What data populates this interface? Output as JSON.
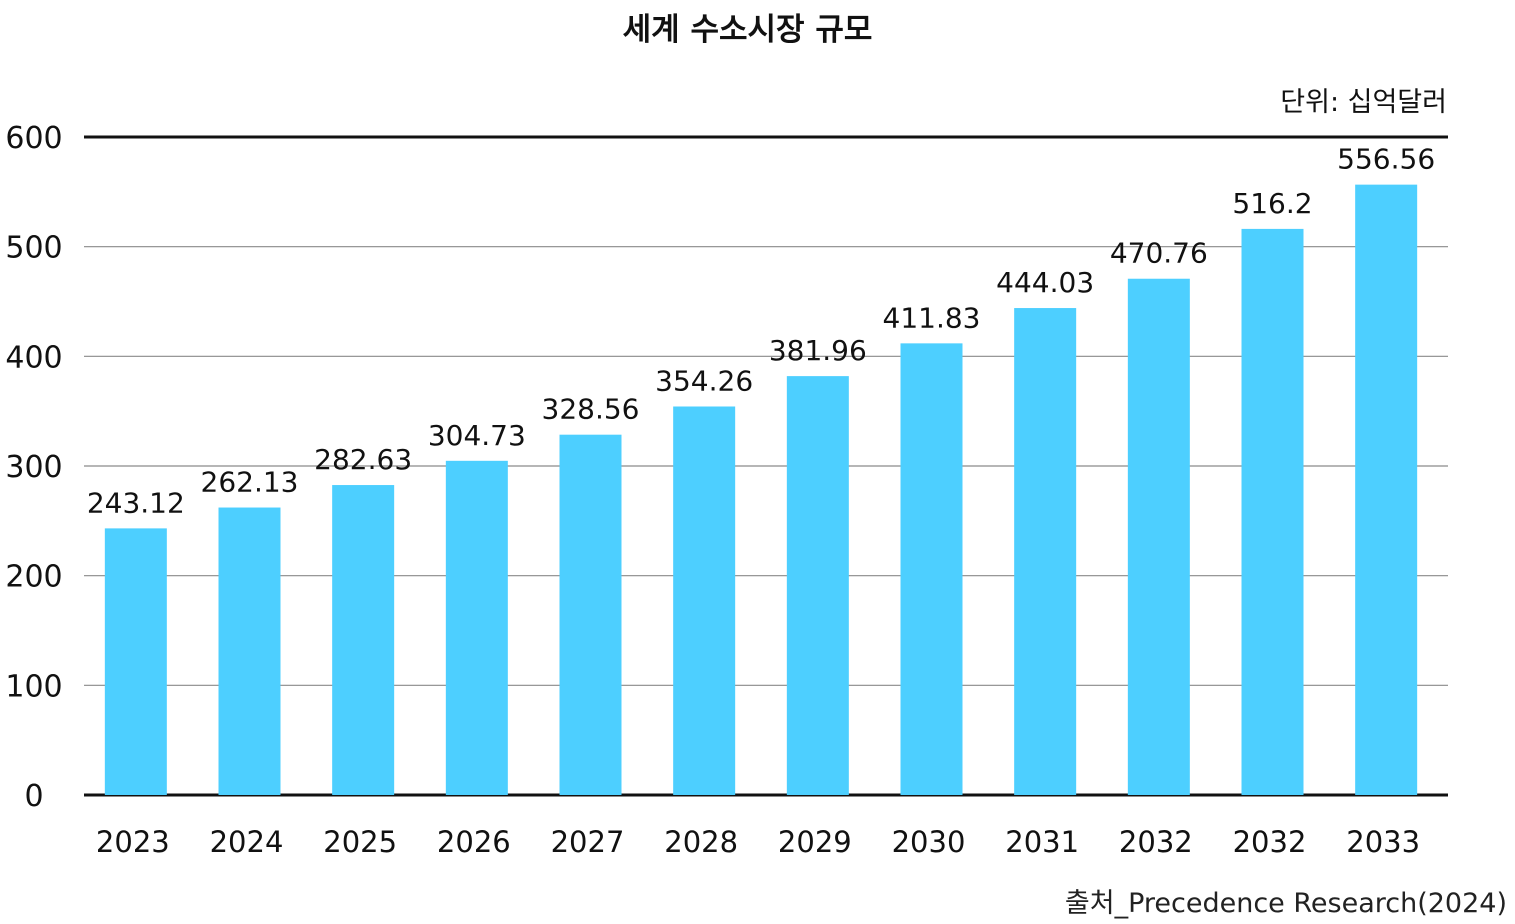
{
  "chart_data": {
    "type": "bar",
    "title": "세계 수소시장 규모",
    "unit": "단위: 십억달러",
    "source": "출처_Precedence Research(2024)",
    "categories": [
      "2023",
      "2024",
      "2025",
      "2026",
      "2027",
      "2028",
      "2029",
      "2030",
      "2031",
      "2032",
      "2032",
      "2033"
    ],
    "values": [
      243.12,
      262.13,
      282.63,
      304.73,
      328.56,
      354.26,
      381.96,
      411.83,
      444.03,
      470.76,
      516.2,
      556.56
    ],
    "value_labels": [
      "243.12",
      "262.13",
      "282.63",
      "304.73",
      "328.56",
      "354.26",
      "381.96",
      "411.83",
      "444.03",
      "470.76",
      "516.2",
      "556.56"
    ],
    "yticks": [
      "0",
      "100",
      "200",
      "300",
      "400",
      "500",
      "600"
    ],
    "ylim": [
      0,
      600
    ],
    "grid": true,
    "bar_color": "#4dcfff"
  }
}
